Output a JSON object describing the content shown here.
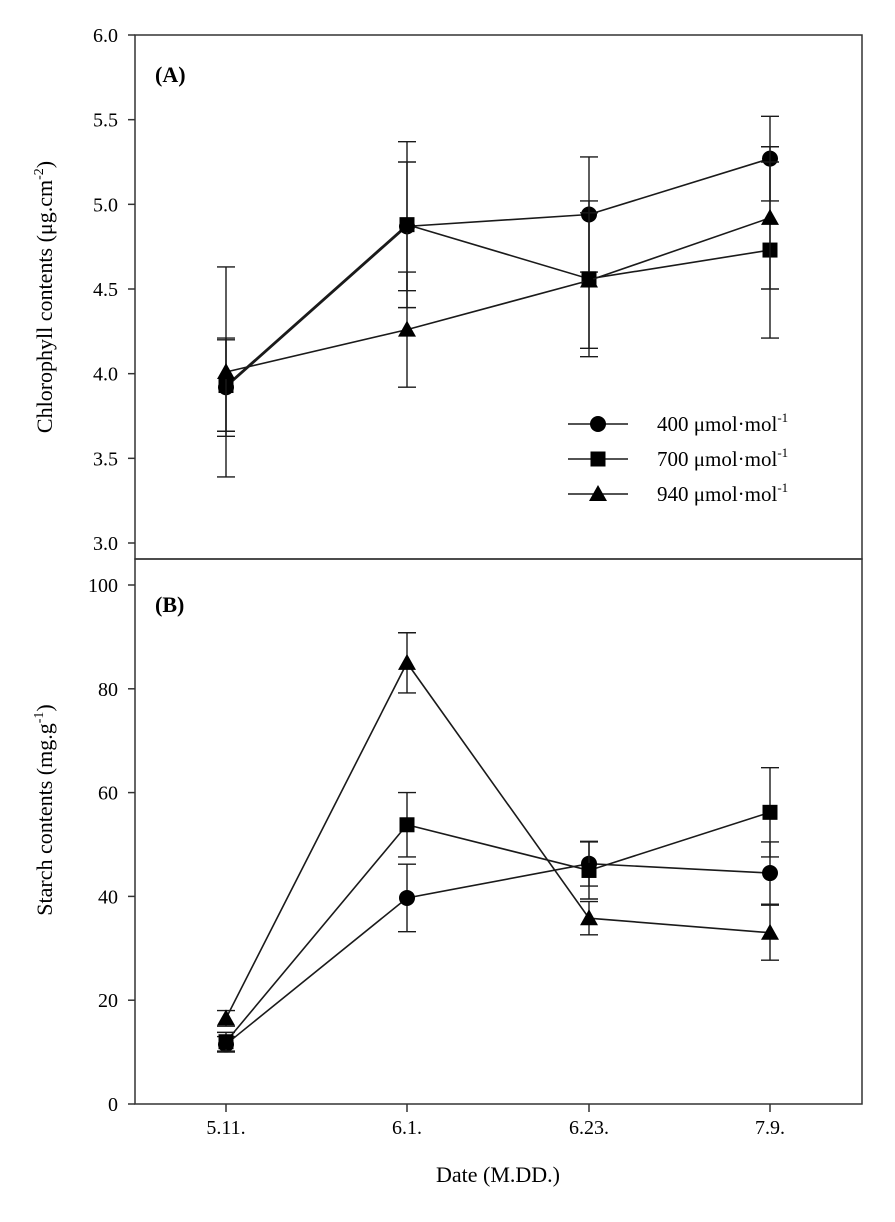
{
  "chart_data": [
    {
      "type": "line",
      "panel_label": "(A)",
      "title": "",
      "xlabel": "",
      "ylabel_main": "Chlorophyll contents (μg.cm",
      "ylabel_sup": "-2",
      "ylabel_end": ")",
      "categories": [
        "5.11.",
        "6.1.",
        "6.23.",
        "7.9."
      ],
      "ylim": [
        3.0,
        6.0
      ],
      "yticks": [
        "3.0",
        "3.5",
        "4.0",
        "4.5",
        "5.0",
        "5.5",
        "6.0"
      ],
      "series": [
        {
          "name": "400 μmol·mol",
          "sup": "-1",
          "marker": "circle",
          "values": [
            3.92,
            4.87,
            4.94,
            5.27
          ],
          "err": [
            0.29,
            0.38,
            0.34,
            0.25
          ]
        },
        {
          "name": "700 μmol·mol",
          "sup": "-1",
          "marker": "square",
          "values": [
            3.93,
            4.88,
            4.56,
            4.73
          ],
          "err": [
            0.27,
            0.49,
            0.46,
            0.52
          ]
        },
        {
          "name": "940 μmol·mol",
          "sup": "-1",
          "marker": "triangle",
          "values": [
            4.01,
            4.26,
            4.55,
            4.92
          ],
          "err": [
            0.62,
            0.34,
            0.4,
            0.42
          ]
        }
      ],
      "legend_position": "lower-right"
    },
    {
      "type": "line",
      "panel_label": "(B)",
      "title": "",
      "xlabel": "Date (M.DD.)",
      "ylabel_main": "Starch contents (mg.g",
      "ylabel_sup": "-1",
      "ylabel_end": ")",
      "categories": [
        "5.11.",
        "6.1.",
        "6.23.",
        "7.9."
      ],
      "ylim": [
        0,
        105
      ],
      "yticks": [
        "0",
        "20",
        "40",
        "60",
        "80",
        "100"
      ],
      "series": [
        {
          "name": "400 μmol·mol",
          "sup": "-1",
          "marker": "circle",
          "values": [
            11.5,
            39.7,
            46.3,
            44.5
          ],
          "err": [
            1.5,
            6.5,
            4.3,
            6.0
          ]
        },
        {
          "name": "700 μmol·mol",
          "sup": "-1",
          "marker": "square",
          "values": [
            12.0,
            53.8,
            45.0,
            56.2
          ],
          "err": [
            1.8,
            6.2,
            5.5,
            8.6
          ]
        },
        {
          "name": "940 μmol·mol",
          "sup": "-1",
          "marker": "triangle",
          "values": [
            16.5,
            85.0,
            35.8,
            33.0
          ],
          "err": [
            1.5,
            5.8,
            3.2,
            5.3
          ]
        }
      ]
    }
  ]
}
